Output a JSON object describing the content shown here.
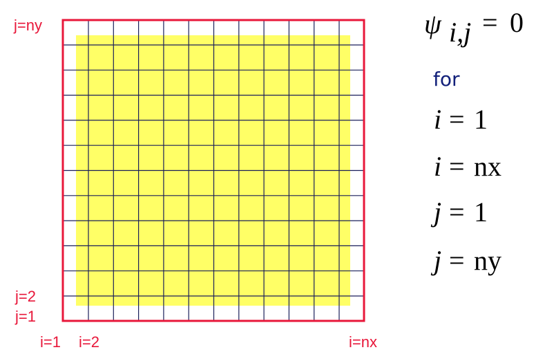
{
  "labels": {
    "j_ny": "j=ny",
    "j_2": "j=2",
    "j_1": "j=1",
    "i_1": "i=1",
    "i_2": "i=2",
    "i_nx": "i=nx"
  },
  "condition": {
    "symbol": "ψ",
    "subscript": "i,j",
    "op": "=",
    "rhs": "0"
  },
  "for": "for",
  "equations": [
    {
      "lhs": "i",
      "op": "=",
      "rhs": "1"
    },
    {
      "lhs": "i",
      "op": "=",
      "rhs": "nx"
    },
    {
      "lhs": "j",
      "op": "=",
      "rhs": "1"
    },
    {
      "lhs": "j",
      "op": "=",
      "rhs": "ny"
    }
  ]
}
